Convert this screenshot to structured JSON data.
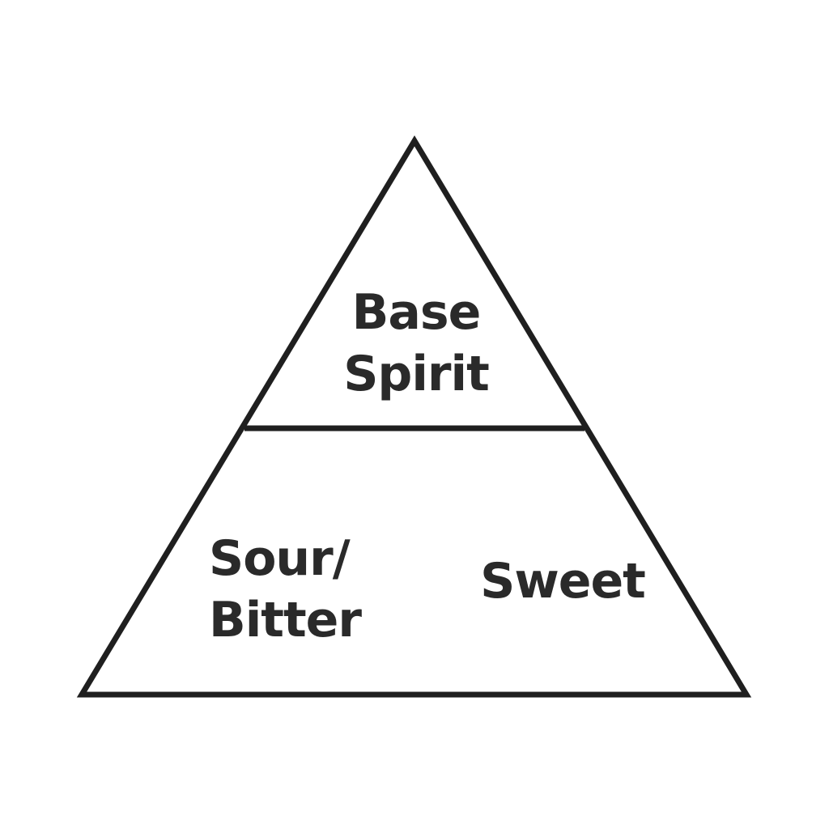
{
  "colors": {
    "background": "#ffffff",
    "stroke": "#1f1f1f",
    "text": "#2a2a2a"
  },
  "top_section": {
    "label_lines": [
      "Base",
      "Spirit"
    ]
  },
  "bottom_left_section": {
    "label_lines": [
      "Sour/",
      "Bitter"
    ]
  },
  "bottom_right_section": {
    "label_lines": [
      "Sweet"
    ]
  }
}
